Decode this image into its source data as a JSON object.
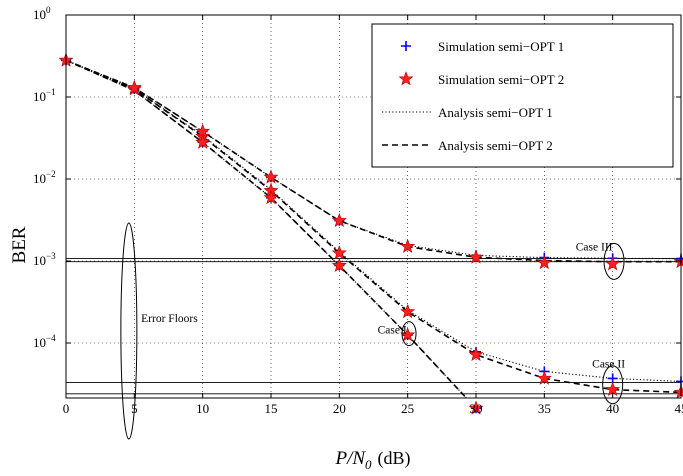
{
  "chart_data": {
    "type": "line",
    "xlabel": "P/N",
    "xlabel_sub": "0",
    "xlabel_unit": "(dB)",
    "ylabel": "BER",
    "xlim": [
      0,
      45
    ],
    "ylim": [
      1.5e-05,
      1
    ],
    "yscale": "log",
    "x_ticks": [
      0,
      5,
      10,
      15,
      20,
      25,
      30,
      35,
      40,
      45
    ],
    "x_tick_labels": [
      "0",
      "5",
      "10",
      "15",
      "20",
      "25",
      "30",
      "35",
      "40",
      "45"
    ],
    "y_ticks": [
      1,
      0.1,
      0.01,
      0.001,
      0.0001
    ],
    "y_tick_labels": [
      {
        "base": "10",
        "exp": "0"
      },
      {
        "base": "10",
        "exp": "−1"
      },
      {
        "base": "10",
        "exp": "−2"
      },
      {
        "base": "10",
        "exp": "−3"
      },
      {
        "base": "10",
        "exp": "−4"
      }
    ],
    "grid": true,
    "legend_position": "top-right",
    "legend": [
      {
        "label": "Simulation semi−OPT 1",
        "marker": "plus",
        "color": "#0000ff"
      },
      {
        "label": "Simulation semi−OPT 2",
        "marker": "star",
        "color": "#ff0000"
      },
      {
        "label": "Analysis semi−OPT 1",
        "line": "dotted",
        "color": "#000000"
      },
      {
        "label": "Analysis semi−OPT 2",
        "line": "dashed",
        "color": "#000000"
      }
    ],
    "error_floors": [
      0.00107,
      0.00098,
      3.3e-05,
      2.4e-05
    ],
    "series": [
      {
        "case": "Case I",
        "style": "dashed",
        "x": [
          0,
          5,
          10,
          15,
          20,
          25,
          30,
          31.2
        ],
        "y": [
          0.28,
          0.12,
          0.028,
          0.0059,
          0.00088,
          0.000125,
          1.6e-05,
          1.15e-05
        ]
      },
      {
        "case": "Case I",
        "style": "dotted",
        "x": [
          0,
          5,
          10,
          15,
          20,
          25,
          30,
          31.2
        ],
        "y": [
          0.28,
          0.12,
          0.028,
          0.0059,
          0.00088,
          0.000125,
          1.6e-05,
          1.15e-05
        ]
      },
      {
        "case": "Case II",
        "style": "dashed",
        "x": [
          0,
          5,
          10,
          15,
          20,
          25,
          30,
          35,
          40,
          45
        ],
        "y": [
          0.28,
          0.125,
          0.033,
          0.0072,
          0.00125,
          0.00024,
          7.2e-05,
          3.7e-05,
          2.7e-05,
          2.5e-05
        ]
      },
      {
        "case": "Case II",
        "style": "dotted",
        "x": [
          0,
          5,
          10,
          15,
          20,
          25,
          30,
          35,
          40,
          45
        ],
        "y": [
          0.28,
          0.125,
          0.034,
          0.0074,
          0.0013,
          0.00025,
          7.8e-05,
          4.5e-05,
          3.7e-05,
          3.4e-05
        ]
      },
      {
        "case": "Case III",
        "style": "dashed",
        "x": [
          0,
          5,
          10,
          15,
          20,
          25,
          30,
          35,
          40,
          45
        ],
        "y": [
          0.28,
          0.13,
          0.038,
          0.0105,
          0.0031,
          0.0015,
          0.00111,
          0.00101,
          0.00098,
          0.00098
        ]
      },
      {
        "case": "Case III",
        "style": "dotted",
        "x": [
          0,
          5,
          10,
          15,
          20,
          25,
          30,
          35,
          40,
          45
        ],
        "y": [
          0.28,
          0.13,
          0.038,
          0.0105,
          0.0031,
          0.00155,
          0.00117,
          0.0011,
          0.00108,
          0.00107
        ]
      }
    ],
    "markers": {
      "sim1": [
        [
          0,
          0.28
        ],
        [
          5,
          0.125
        ],
        [
          10,
          0.034
        ],
        [
          15,
          0.0074
        ],
        [
          20,
          0.0013
        ],
        [
          25,
          0.00025
        ],
        [
          30,
          7.8e-05
        ],
        [
          35,
          4.5e-05
        ],
        [
          40,
          3.7e-05
        ],
        [
          45,
          3.4e-05
        ],
        [
          5,
          0.13
        ],
        [
          10,
          0.038
        ],
        [
          15,
          0.0105
        ],
        [
          20,
          0.0031
        ],
        [
          25,
          0.00155
        ],
        [
          30,
          0.00117
        ],
        [
          35,
          0.0011
        ],
        [
          40,
          0.00108
        ],
        [
          45,
          0.00107
        ],
        [
          10,
          0.028
        ],
        [
          15,
          0.0059
        ],
        [
          20,
          0.00088
        ],
        [
          25,
          0.000125
        ],
        [
          30,
          1.6e-05
        ]
      ],
      "sim2": [
        [
          0,
          0.28
        ],
        [
          5,
          0.125
        ],
        [
          10,
          0.033
        ],
        [
          15,
          0.0072
        ],
        [
          20,
          0.00125
        ],
        [
          25,
          0.00024
        ],
        [
          30,
          7.2e-05
        ],
        [
          35,
          3.7e-05
        ],
        [
          40,
          2.7e-05
        ],
        [
          45,
          2.5e-05
        ],
        [
          5,
          0.13
        ],
        [
          10,
          0.038
        ],
        [
          15,
          0.0105
        ],
        [
          20,
          0.0031
        ],
        [
          25,
          0.0015
        ],
        [
          30,
          0.00111
        ],
        [
          35,
          0.00095
        ],
        [
          40,
          0.00092
        ],
        [
          45,
          0.00098
        ],
        [
          10,
          0.028
        ],
        [
          15,
          0.0059
        ],
        [
          20,
          0.00088
        ],
        [
          25,
          0.000125
        ],
        [
          30,
          1.6e-05
        ]
      ]
    },
    "annotations": [
      {
        "label": "Error Floors",
        "x": 5.5,
        "y": 0.00018
      },
      {
        "label": "Case I",
        "x": 22.8,
        "y": 0.00013
      },
      {
        "label": "Case II",
        "x": 38.5,
        "y": 5e-05
      },
      {
        "label": "Case III",
        "x": 37.3,
        "y": 0.00135
      }
    ],
    "ellipses": [
      {
        "name": "error-floors-ellipse",
        "cx": 4.6,
        "cy": 0.00014
      },
      {
        "name": "case-i-ellipse",
        "cx": 25.1,
        "cy": 0.00013
      },
      {
        "name": "case-ii-ellipse",
        "cx": 40,
        "cy": 3.1e-05
      },
      {
        "name": "case-iii-ellipse",
        "cx": 40.1,
        "cy": 0.00099
      }
    ]
  }
}
